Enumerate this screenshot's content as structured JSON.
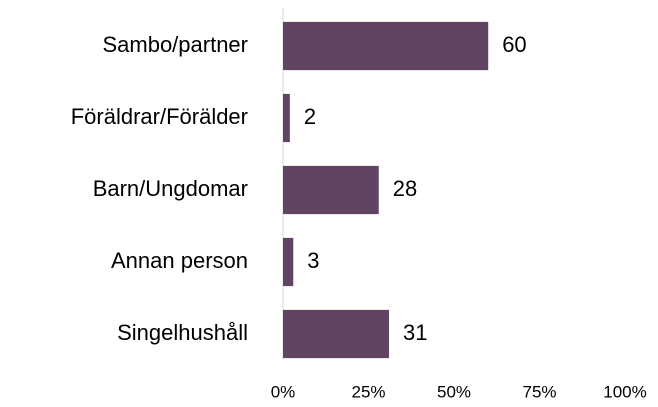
{
  "chart_data": {
    "type": "bar",
    "orientation": "horizontal",
    "categories": [
      "Sambo/partner",
      "Föräldrar/Förälder",
      "Barn/Ungdomar",
      "Annan person",
      "Singelhushåll"
    ],
    "values": [
      60,
      2,
      28,
      3,
      31
    ],
    "color": "#604562",
    "xlim": [
      0,
      100
    ],
    "xticks": [
      {
        "value": 0,
        "label": "0%"
      },
      {
        "value": 25,
        "label": "25%"
      },
      {
        "value": 50,
        "label": "50%"
      },
      {
        "value": 75,
        "label": "75%"
      },
      {
        "value": 100,
        "label": "100%"
      }
    ],
    "grid": false
  }
}
